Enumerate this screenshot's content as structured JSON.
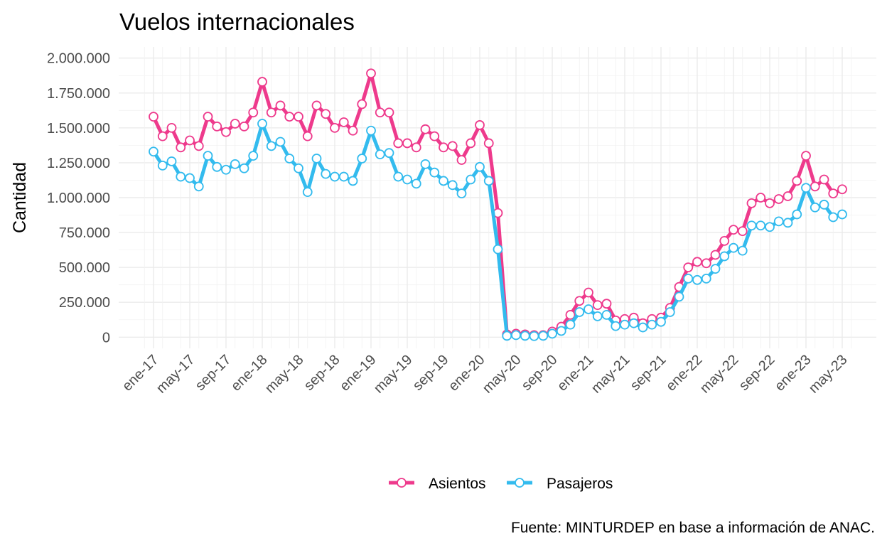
{
  "chart_data": {
    "type": "line",
    "title": "Vuelos internacionales",
    "xlabel": "",
    "ylabel": "Cantidad",
    "caption": "Fuente: MINTURDEP en base a información de ANAC.",
    "x": [
      "ene-17",
      "feb-17",
      "mar-17",
      "abr-17",
      "may-17",
      "jun-17",
      "jul-17",
      "ago-17",
      "sep-17",
      "oct-17",
      "nov-17",
      "dic-17",
      "ene-18",
      "feb-18",
      "mar-18",
      "abr-18",
      "may-18",
      "jun-18",
      "jul-18",
      "ago-18",
      "sep-18",
      "oct-18",
      "nov-18",
      "dic-18",
      "ene-19",
      "feb-19",
      "mar-19",
      "abr-19",
      "may-19",
      "jun-19",
      "jul-19",
      "ago-19",
      "sep-19",
      "oct-19",
      "nov-19",
      "dic-19",
      "ene-20",
      "feb-20",
      "mar-20",
      "abr-20",
      "may-20",
      "jun-20",
      "jul-20",
      "ago-20",
      "sep-20",
      "oct-20",
      "nov-20",
      "dic-20",
      "ene-21",
      "feb-21",
      "mar-21",
      "abr-21",
      "may-21",
      "jun-21",
      "jul-21",
      "ago-21",
      "sep-21",
      "oct-21",
      "nov-21",
      "dic-21",
      "ene-22",
      "feb-22",
      "mar-22",
      "abr-22",
      "may-22",
      "jun-22",
      "jul-22",
      "ago-22",
      "sep-22",
      "oct-22",
      "nov-22",
      "dic-22",
      "ene-23",
      "feb-23",
      "mar-23",
      "abr-23",
      "may-23"
    ],
    "x_tick_labels": [
      "ene-17",
      "may-17",
      "sep-17",
      "ene-18",
      "may-18",
      "sep-18",
      "ene-19",
      "may-19",
      "sep-19",
      "ene-20",
      "may-20",
      "sep-20",
      "ene-21",
      "may-21",
      "sep-21",
      "ene-22",
      "may-22",
      "sep-22",
      "ene-23",
      "may-23"
    ],
    "y_tick_labels": [
      "0",
      "250.000",
      "500.000",
      "750.000",
      "1.000.000",
      "1.250.000",
      "1.500.000",
      "1.750.000",
      "2.000.000"
    ],
    "y_ticks": [
      0,
      250000,
      500000,
      750000,
      1000000,
      1250000,
      1500000,
      1750000,
      2000000
    ],
    "ylim": [
      -80000,
      2080000
    ],
    "grid": true,
    "legend_position": "bottom",
    "series": [
      {
        "name": "Asientos",
        "color": "#ee3a8c",
        "values": [
          1580000,
          1440000,
          1500000,
          1360000,
          1410000,
          1370000,
          1580000,
          1510000,
          1470000,
          1530000,
          1510000,
          1610000,
          1830000,
          1610000,
          1660000,
          1580000,
          1580000,
          1440000,
          1660000,
          1600000,
          1500000,
          1540000,
          1480000,
          1670000,
          1890000,
          1610000,
          1610000,
          1390000,
          1390000,
          1360000,
          1490000,
          1440000,
          1360000,
          1370000,
          1270000,
          1390000,
          1520000,
          1390000,
          890000,
          20000,
          25000,
          20000,
          15000,
          15000,
          40000,
          75000,
          160000,
          260000,
          320000,
          230000,
          240000,
          120000,
          130000,
          140000,
          100000,
          130000,
          140000,
          210000,
          360000,
          500000,
          540000,
          530000,
          590000,
          690000,
          770000,
          760000,
          960000,
          1000000,
          960000,
          990000,
          1010000,
          1120000,
          1300000,
          1080000,
          1130000,
          1030000,
          1060000
        ]
      },
      {
        "name": "Pasajeros",
        "color": "#33bbee",
        "values": [
          1330000,
          1230000,
          1260000,
          1150000,
          1140000,
          1080000,
          1300000,
          1220000,
          1200000,
          1240000,
          1210000,
          1300000,
          1530000,
          1370000,
          1400000,
          1280000,
          1210000,
          1040000,
          1280000,
          1170000,
          1150000,
          1150000,
          1120000,
          1280000,
          1480000,
          1310000,
          1320000,
          1150000,
          1130000,
          1100000,
          1240000,
          1180000,
          1120000,
          1090000,
          1030000,
          1130000,
          1220000,
          1120000,
          630000,
          10000,
          15000,
          10000,
          8000,
          10000,
          25000,
          45000,
          90000,
          180000,
          200000,
          150000,
          160000,
          80000,
          90000,
          100000,
          70000,
          90000,
          110000,
          180000,
          290000,
          420000,
          410000,
          420000,
          490000,
          580000,
          640000,
          620000,
          800000,
          800000,
          790000,
          830000,
          820000,
          880000,
          1070000,
          930000,
          950000,
          860000,
          880000
        ]
      }
    ]
  }
}
